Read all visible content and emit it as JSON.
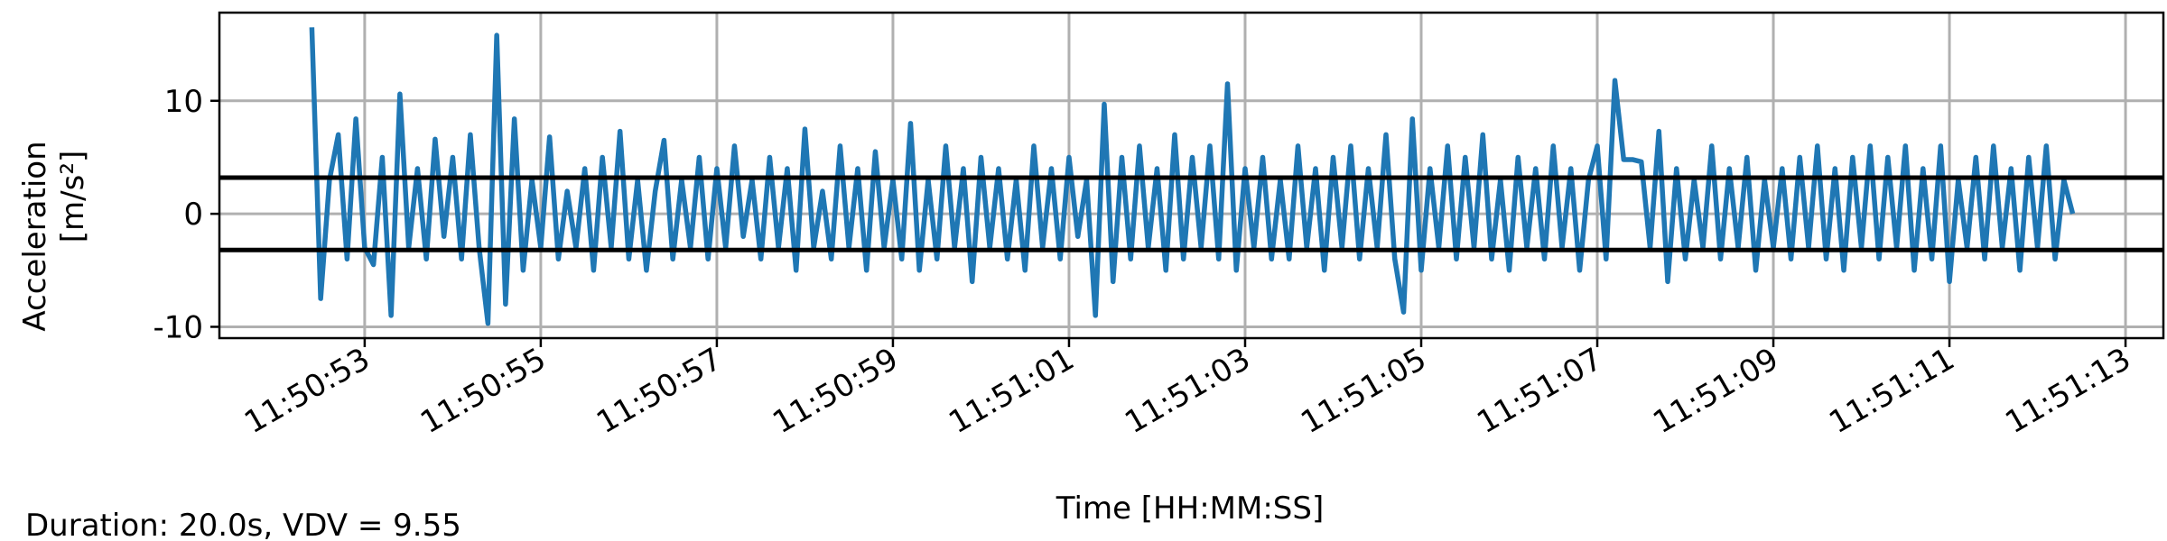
{
  "chart_data": {
    "type": "line",
    "ylabel": [
      "Acceleration",
      "[m/s²]"
    ],
    "xlabel": "Time [HH:MM:SS]",
    "annotation": "Duration: 20.0s, VDV = 9.55",
    "color": "#1f77b4",
    "grid": true,
    "xlim": [
      42651.35,
      42673.43
    ],
    "ylim": [
      -11,
      17.8
    ],
    "yticks": [
      -10,
      0,
      10
    ],
    "xticks": [
      {
        "value": 42653,
        "label": "11:50:53"
      },
      {
        "value": 42655,
        "label": "11:50:55"
      },
      {
        "value": 42657,
        "label": "11:50:57"
      },
      {
        "value": 42659,
        "label": "11:50:59"
      },
      {
        "value": 42661,
        "label": "11:51:01"
      },
      {
        "value": 42663,
        "label": "11:51:03"
      },
      {
        "value": 42665,
        "label": "11:51:05"
      },
      {
        "value": 42667,
        "label": "11:51:07"
      },
      {
        "value": 42669,
        "label": "11:51:09"
      },
      {
        "value": 42671,
        "label": "11:51:11"
      },
      {
        "value": 42673,
        "label": "11:51:13"
      }
    ],
    "hlines": [
      {
        "value": 3.2,
        "color": "#000000"
      },
      {
        "value": -3.2,
        "color": "#000000"
      }
    ],
    "x": [
      42652.4,
      42652.5,
      42652.6,
      42652.7,
      42652.8,
      42652.9,
      42653.0,
      42653.1,
      42653.2,
      42653.3,
      42653.4,
      42653.5,
      42653.6,
      42653.7,
      42653.8,
      42653.9,
      42654.0,
      42654.1,
      42654.2,
      42654.3,
      42654.4,
      42654.5,
      42654.6,
      42654.7,
      42654.8,
      42654.9,
      42655.0,
      42655.1,
      42655.2,
      42655.3,
      42655.4,
      42655.5,
      42655.6,
      42655.7,
      42655.8,
      42655.9,
      42656.0,
      42656.1,
      42656.2,
      42656.3,
      42656.4,
      42656.5,
      42656.6,
      42656.7,
      42656.8,
      42656.9,
      42657.0,
      42657.1,
      42657.2,
      42657.3,
      42657.4,
      42657.5,
      42657.6,
      42657.7,
      42657.8,
      42657.9,
      42658.0,
      42658.1,
      42658.2,
      42658.3,
      42658.4,
      42658.5,
      42658.6,
      42658.7,
      42658.8,
      42658.9,
      42659.0,
      42659.1,
      42659.2,
      42659.3,
      42659.4,
      42659.5,
      42659.6,
      42659.7,
      42659.8,
      42659.9,
      42660.0,
      42660.1,
      42660.2,
      42660.3,
      42660.4,
      42660.5,
      42660.6,
      42660.7,
      42660.8,
      42660.9,
      42661.0,
      42661.1,
      42661.2,
      42661.3,
      42661.4,
      42661.5,
      42661.6,
      42661.7,
      42661.8,
      42661.9,
      42662.0,
      42662.1,
      42662.2,
      42662.3,
      42662.4,
      42662.5,
      42662.6,
      42662.7,
      42662.8,
      42662.9,
      42663.0,
      42663.1,
      42663.2,
      42663.3,
      42663.4,
      42663.5,
      42663.6,
      42663.7,
      42663.8,
      42663.9,
      42664.0,
      42664.1,
      42664.2,
      42664.3,
      42664.4,
      42664.5,
      42664.6,
      42664.7,
      42664.8,
      42664.9,
      42665.0,
      42665.1,
      42665.2,
      42665.3,
      42665.4,
      42665.5,
      42665.6,
      42665.7,
      42665.8,
      42665.9,
      42666.0,
      42666.1,
      42666.2,
      42666.3,
      42666.4,
      42666.5,
      42666.6,
      42666.7,
      42666.8,
      42666.9,
      42667.0,
      42667.1,
      42667.2,
      42667.3,
      42667.4,
      42667.5,
      42667.6,
      42667.7,
      42667.8,
      42667.9,
      42668.0,
      42668.1,
      42668.2,
      42668.3,
      42668.4,
      42668.5,
      42668.6,
      42668.7,
      42668.8,
      42668.9,
      42669.0,
      42669.1,
      42669.2,
      42669.3,
      42669.4,
      42669.5,
      42669.6,
      42669.7,
      42669.8,
      42669.9,
      42670.0,
      42670.1,
      42670.2,
      42670.3,
      42670.4,
      42670.5,
      42670.6,
      42670.7,
      42670.8,
      42670.9,
      42671.0,
      42671.1,
      42671.2,
      42671.3,
      42671.4,
      42671.5,
      42671.6,
      42671.7,
      42671.8,
      42671.9,
      42672.0,
      42672.1,
      42672.2,
      42672.3,
      42672.4
    ],
    "values": [
      16.5,
      -7.5,
      3,
      7,
      -4,
      8.4,
      -3,
      -4.5,
      5,
      -9,
      10.6,
      -3,
      4,
      -4,
      6.6,
      -2,
      5,
      -4,
      7,
      -3,
      -9.7,
      15.8,
      -8,
      8.4,
      -5,
      3,
      -3,
      6.8,
      -4,
      2,
      -3,
      4,
      -5,
      5,
      -3,
      7.3,
      -4,
      3,
      -5,
      2,
      6.5,
      -4,
      3,
      -3,
      5,
      -4,
      4,
      -3,
      6,
      -2,
      3,
      -4,
      5,
      -3,
      4,
      -5,
      7.5,
      -3,
      2,
      -4,
      6,
      -3,
      4,
      -5,
      5.5,
      -3,
      3,
      -4,
      8,
      -5,
      3,
      -4,
      6,
      -3,
      4,
      -6,
      5,
      -3,
      4,
      -4,
      3,
      -5,
      6,
      -3,
      4,
      -4,
      5,
      -2,
      3,
      -9,
      9.7,
      -6,
      5,
      -4,
      6,
      -3,
      4,
      -5,
      7,
      -4,
      5,
      -3,
      6,
      -4,
      11.5,
      -5,
      4,
      -3,
      5,
      -4,
      3,
      -4,
      6,
      -3,
      4,
      -5,
      5,
      -3,
      6,
      -4,
      4,
      -3,
      7,
      -4,
      -8.7,
      8.4,
      -5,
      4,
      -3,
      6,
      -4,
      5,
      -3,
      7,
      -4,
      3,
      -5,
      5,
      -3,
      4,
      -4,
      6,
      -3,
      4,
      -5,
      3,
      6,
      -4,
      11.8,
      4.8,
      4.8,
      4.6,
      -3,
      7.3,
      -6,
      4,
      -4,
      3,
      -3,
      6,
      -4,
      4,
      -3,
      5,
      -5,
      3,
      -3,
      4,
      -4,
      5,
      -3,
      6,
      -4,
      4,
      -5,
      5,
      -3,
      6,
      -4,
      5,
      -3,
      6,
      -5,
      4,
      -4,
      6,
      -6,
      3,
      -3,
      5,
      -4,
      6,
      -3,
      4,
      -5,
      5,
      -3,
      6,
      -4,
      3,
      0
    ]
  }
}
